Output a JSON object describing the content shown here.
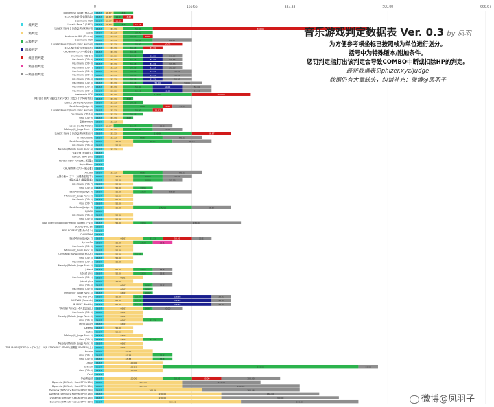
{
  "title": {
    "main": "音乐游戏判定数据表 Ver. 0.3",
    "author": "by 凤羽",
    "lines": [
      "为方便参考横坐标已按照帧为单位进行划分。",
      "括号中为特殊版本/附加条件。",
      "惩罚判定指打出该判定会导致COMBO中断或扣除HP的判定。"
    ],
    "link": "最新数据表见phizer.xyz/judge",
    "note": "数据仍有大量缺失，纠错补充：微博@凤羽子"
  },
  "watermark": "微博@凤羽子",
  "colors": {
    "l1": "#3dd6e4",
    "l2": "#f7d47a",
    "l3": "#2bb34d",
    "l4": "#1a1f8e",
    "p1": "#d11a1a",
    "p2": "#e83fa0",
    "p3": "#8e8e8e"
  },
  "chart_data": {
    "type": "bar",
    "stacked": true,
    "orientation": "horizontal",
    "x_ticks": [
      "0",
      "166.66",
      "333.33",
      "500.00",
      "666.67"
    ],
    "xlim": [
      0,
      666.67
    ],
    "grid": true,
    "legend_position": "left",
    "series": [
      {
        "key": "l1",
        "name": "一级判定"
      },
      {
        "key": "l2",
        "name": "二级判定"
      },
      {
        "key": "l3",
        "name": "三级判定"
      },
      {
        "key": "l4",
        "name": "四级判定"
      },
      {
        "key": "p1",
        "name": "一级惩罚判定"
      },
      {
        "key": "p2",
        "name": "二级惩罚判定"
      },
      {
        "key": "p3",
        "name": "一级惩罚判定"
      }
    ],
    "rows": [
      {
        "label": "DanceRush Judge (MOCA)",
        "l1": 16.67,
        "l2": 16.67,
        "l3": 33.33
      },
      {
        "label": "EZ2ON (鼓爵·顶/极限凤凰)",
        "l1": 16.67,
        "l2": 16.67,
        "l3": 16.67,
        "p1": 16.67
      },
      {
        "label": "beatmania IIDX",
        "l1": 16.67,
        "l2": 16.67,
        "p1": 16.67
      },
      {
        "label": "Lunatic Rave 2 (EASY)",
        "l1": 16.67,
        "l2": 16.67,
        "l3": 33.33,
        "p1": 16.67
      },
      {
        "label": "Lunatic Rave 2 (Judge Rank Hard)",
        "l1": 16.67,
        "l2": 33.33,
        "l3": 50.0,
        "p1": 366.66
      },
      {
        "label": "EZ2DJ",
        "l1": 16.67,
        "l2": 33.33,
        "l3": 50.0
      },
      {
        "label": "beatmania IIDX (Timing)",
        "l1": 16.67,
        "l2": 33.33,
        "l3": 33.33,
        "p1": 16.67
      },
      {
        "label": "beatmania IIDX",
        "l1": 16.67,
        "l2": 33.33,
        "l3": 50.0,
        "p3": 66.67
      },
      {
        "label": "Lunatic Rave 2 (Judge Rank Normal)",
        "l1": 16.67,
        "l2": 33.33,
        "l3": 50.0,
        "p1": 50.0
      },
      {
        "label": "EZ2ON (鼓爵·顶/极限凤凰)",
        "l1": 16.67,
        "l2": 33.33,
        "l3": 33.33,
        "p1": 33.33
      },
      {
        "label": "CHUNITHM (フリー/初心者)",
        "l1": 16.67,
        "l2": 33.33,
        "l3": 33.33
      },
      {
        "label": "Osu!mania (OD 10)",
        "l1": 16.67,
        "l2": 33.33,
        "l3": 33.33,
        "l4": 33.33,
        "p3": 33.33
      },
      {
        "label": "Osu!mania (OD 9)",
        "l1": 16.67,
        "l2": 33.33,
        "l3": 33.33,
        "l4": 33.33,
        "p3": 33.33
      },
      {
        "label": "Osu!mania (OD 8)",
        "l1": 16.67,
        "l2": 33.33,
        "l3": 33.33,
        "l4": 33.33,
        "p3": 33.33
      },
      {
        "label": "Osu!mania (OD 7)",
        "l1": 16.67,
        "l2": 33.33,
        "l3": 33.33,
        "l4": 33.33,
        "p3": 33.33
      },
      {
        "label": "Osu!mania (OD 6)",
        "l1": 16.67,
        "l2": 33.33,
        "l3": 33.33,
        "l4": 33.33,
        "p3": 50.0
      },
      {
        "label": "Osu!mania (OD 5)",
        "l1": 16.67,
        "l2": 33.33,
        "l3": 33.33,
        "l4": 33.33,
        "p3": 50.0
      },
      {
        "label": "Osu!mania (OD 4)",
        "l1": 16.67,
        "l2": 33.33,
        "l3": 33.33,
        "l4": 33.33,
        "p3": 50.0
      },
      {
        "label": "Osu!mania (OD 3)",
        "l1": 16.67,
        "l2": 33.33,
        "l3": 33.33,
        "l4": 50.0,
        "p3": 50.0
      },
      {
        "label": "Osu!mania (OD 2)",
        "l1": 16.67,
        "l2": 33.33,
        "l3": 50.0,
        "l4": 50.0,
        "p3": 50.0
      },
      {
        "label": "Osu!mania (OD 1)",
        "l1": 16.67,
        "l2": 33.33,
        "l3": 50.0,
        "l4": 50.0,
        "p3": 50.0
      },
      {
        "label": "beatmania IIDX",
        "l1": 16.67,
        "l2": 33.33,
        "l3": 116.66,
        "p1": 100.0
      },
      {
        "label": "REFLEC BEAT (限5为ボタン/タブ_対応ライブ MASTER)",
        "l1": 16.67,
        "l2": 33.33,
        "l3": 16.67
      },
      {
        "label": "Dance Dance Revolution",
        "l1": 16.67,
        "l2": 33.33,
        "l3": 33.33
      },
      {
        "label": "BeatMania (Judge 8)",
        "l1": 16.67,
        "l2": 33.33,
        "l3": 66.67,
        "p1": 16.67,
        "p3": 33.33
      },
      {
        "label": "Lunatic Rave 2 (Judge Rank Normal)",
        "l1": 16.67,
        "l2": 33.33,
        "l3": 50.0,
        "p1": 16.67
      },
      {
        "label": "Osu!mania (OD 10)",
        "l1": 16.67,
        "l2": 33.33,
        "l3": 33.33
      },
      {
        "label": "Osu! (OD 9)",
        "l1": 16.67,
        "l2": 33.33,
        "l3": 16.67
      },
      {
        "label": "音游WHHEN",
        "l1": 16.67,
        "l2": 33.33
      },
      {
        "label": "Jubeat (HARD MODE)",
        "l1": 16.67,
        "l2": 16.67,
        "l3": 66.67,
        "p3": 33.33
      },
      {
        "label": "Melody (P_Judge Rank 1)",
        "l1": 16.67,
        "l2": 33.33,
        "l3": 50.0,
        "p3": 50.0
      },
      {
        "label": "Lunatic Rave 2 (Judge Rank Easy)",
        "l1": 16.67,
        "l2": 33.33,
        "l3": 116.66,
        "p1": 66.67
      },
      {
        "label": "In The Groove",
        "l1": 16.67,
        "l2": 33.33,
        "l3": 66.67,
        "p3": 66.67
      },
      {
        "label": "BeatMania (Judge 4)",
        "l1": 16.67,
        "l2": 50.0,
        "l3": 66.67,
        "p3": 66.67
      },
      {
        "label": "Osu!mania (OD 6)",
        "l1": 16.67,
        "l2": 50.0
      },
      {
        "label": "Melody (Melody Judge Rank 6)",
        "l1": 16.67,
        "l2": 33.33
      },
      {
        "label": "节奏大师 (经典模式)",
        "l1": 16.67
      },
      {
        "label": "REFLEC BEAT plus",
        "l1": 16.67
      },
      {
        "label": "REFLEC BEAT (VOLZZA (红蓝))",
        "l1": 16.67
      },
      {
        "label": "Pop'n Music",
        "l1": 16.67
      },
      {
        "label": "CHUNITHM (フリー/初心者)",
        "l1": 16.67
      },
      {
        "label": "Arcaea",
        "l1": 16.67,
        "l2": 33.33,
        "l3": 66.67,
        "p3": 66.67
      },
      {
        "label": "太鼓の達人 (フリー) (難易度 松/竹)",
        "l1": 16.67,
        "l2": 50.0,
        "l3": 50.0,
        "p3": 50.0
      },
      {
        "label": "太鼓の達人 (難易度 梅)",
        "l1": 16.67,
        "l2": 50.0,
        "l3": 50.0,
        "p3": 33.33
      },
      {
        "label": "Osu!mania (OD 7)",
        "l1": 16.67,
        "l2": 50.0
      },
      {
        "label": "Osu! (OD 8)",
        "l1": 16.67,
        "l2": 50.0,
        "l3": 33.33
      },
      {
        "label": "BeatMania (Judge 5)",
        "l1": 16.67,
        "l2": 50.0,
        "l3": 33.33,
        "p3": 66.67
      },
      {
        "label": "Melody (P_Judge Rank 2)",
        "l1": 16.67,
        "l2": 50.0
      },
      {
        "label": "Osu!mania (OD 5)",
        "l1": 16.67,
        "l2": 50.0
      },
      {
        "label": "Osu! (OD 7)",
        "l1": 16.67,
        "l2": 50.0
      },
      {
        "label": "BeatMania (Judge 3)",
        "l1": 16.67,
        "l2": 50.0,
        "l3": 100.0,
        "p3": 66.67
      },
      {
        "label": "DJMAX",
        "l1": 16.67
      },
      {
        "label": "Osu!mania (OD 4)",
        "l1": 16.67,
        "l2": 50.0
      },
      {
        "label": "Osu! (OD 6)",
        "l1": 16.67,
        "l2": 50.0
      },
      {
        "label": "Love Live! School Idol Festival (Speed 5~10)",
        "l1": 16.67,
        "l2": 50.0,
        "l3": 33.33,
        "p3": 150.0
      },
      {
        "label": "SOUND VOLTEX",
        "l1": 16.67
      },
      {
        "label": "REFLEC BEAT (限5为ボタン)",
        "l1": 16.67
      },
      {
        "label": "CHUNITHM",
        "l1": 16.67
      },
      {
        "label": "BeatMania (Judge 2)",
        "l1": 16.67,
        "l2": 66.67,
        "l3": 33.33,
        "p1": 50.0,
        "p3": 33.33
      },
      {
        "label": "Lyrica Go",
        "l1": 16.67,
        "l2": 50.0,
        "l3": 33.33,
        "p2": 33.33
      },
      {
        "label": "Osu!mania (OD 3)",
        "l1": 16.67,
        "l2": 50.0
      },
      {
        "label": "Melody (P_Judge Rank 3)",
        "l1": 16.67,
        "l2": 50.0
      },
      {
        "label": "Overtaps (HARD/EDGE MODE)",
        "l1": 16.67,
        "l2": 50.0,
        "l3": 16.67
      },
      {
        "label": "Osu! (OD 5)",
        "l1": 16.67,
        "l2": 50.0
      },
      {
        "label": "Osu!mania (OD 2)",
        "l1": 16.67,
        "l2": 50.0
      },
      {
        "label": "Melody (Melody Judge Rank 5)",
        "l1": 16.67
      },
      {
        "label": "Jubeat",
        "l1": 16.67,
        "l2": 50.0,
        "l3": 33.33,
        "p3": 33.33
      },
      {
        "label": "Jubeat plus",
        "l1": 16.67,
        "l2": 50.0,
        "l3": 33.33,
        "p3": 33.33
      },
      {
        "label": "Osu!mania (OD 1)",
        "l1": 16.67,
        "l2": 66.67
      },
      {
        "label": "Jubeat plus",
        "l1": 16.67,
        "l2": 50.0
      },
      {
        "label": "Osu! (OD 4)",
        "l1": 16.67,
        "l2": 66.67,
        "l3": 16.67,
        "p3": 33.33
      },
      {
        "label": "Osu!mania (OD 0)",
        "l1": 16.67,
        "l2": 66.67,
        "l3": 16.67
      },
      {
        "label": "Melody (P_Judge Rank 4)",
        "l1": 16.67,
        "l2": 66.67,
        "l3": 16.67
      },
      {
        "label": "MUSYNX (PC)",
        "l1": 16.67,
        "l2": 50.0,
        "l3": 16.67,
        "l4": 116.66,
        "p3": 33.33
      },
      {
        "label": "MUSYNX (Console)",
        "l1": 16.67,
        "l2": 50.0,
        "l3": 16.67,
        "l4": 116.66,
        "p3": 33.33
      },
      {
        "label": "MUSYNX (Mobile)",
        "l1": 16.67,
        "l2": 50.0,
        "l3": 16.67,
        "l4": 116.66,
        "p3": 33.33
      },
      {
        "label": "Wonder Parade (不可思议乐队)",
        "l1": 16.67,
        "l2": 66.67,
        "l3": 16.67,
        "p3": 50.0
      },
      {
        "label": "Osu!mania (OD 0)",
        "l1": 16.67,
        "l2": 66.67
      },
      {
        "label": "Melody (Melody Judge Rank 4)",
        "l1": 16.67,
        "l2": 66.67
      },
      {
        "label": "Osu! (OD 3)",
        "l1": 16.67,
        "l2": 66.67,
        "l3": 33.33
      },
      {
        "label": "MUSE DASH",
        "l1": 16.67,
        "l2": 66.67
      },
      {
        "label": "Deemo",
        "l1": 16.67,
        "l2": 50.0
      },
      {
        "label": "Cytus",
        "l1": 16.67,
        "l2": 50.0
      },
      {
        "label": "Melody (P_Judge Rank 5)",
        "l1": 16.67,
        "l2": 66.67
      },
      {
        "label": "Osu! (OD 2)",
        "l1": 16.67,
        "l2": 66.67,
        "l3": 33.33
      },
      {
        "label": "Melody (Melody Judge Rank 3)",
        "l1": 16.67,
        "l2": 66.67
      },
      {
        "label": "THE IDOLM@STER シンデレラガールズ STARLIGHT STAGE (難易度 MASTER以上)",
        "l1": 16.67,
        "l2": 66.67
      },
      {
        "label": "Lanota",
        "l1": 16.67,
        "l2": 83.33
      },
      {
        "label": "Osu! (OD 1)",
        "l1": 16.67,
        "l2": 83.33,
        "l3": 33.33
      },
      {
        "label": "Osu! (OD 0)",
        "l1": 16.67,
        "l2": 83.33,
        "l3": 33.33
      },
      {
        "label": "Osbar",
        "l1": 16.67,
        "l2": 100.0
      },
      {
        "label": "Cytus II",
        "l1": 16.67,
        "l2": 100.0,
        "l3": 333.33,
        "p3": 33.33
      },
      {
        "label": "Osu! (OD 0)",
        "l1": 16.67,
        "l2": 100.0
      },
      {
        "label": "Osu!",
        "l1": 16.67
      },
      {
        "label": "OverRapid",
        "l1": 16.67,
        "l2": 100.0,
        "l3": 50.0,
        "p1": 50.0,
        "p3": 100.0
      },
      {
        "label": "Dynamix (Difficulty Hard BPM<180)",
        "l1": 16.67,
        "l2": 133.33,
        "p3": 133.33
      },
      {
        "label": "Dynamix (Difficulty Hard BPM>180)",
        "l1": 16.67,
        "l2": 133.33,
        "p3": 200.0
      },
      {
        "label": "Dynamix (Difficulty Normal BPM<180)",
        "l1": 16.67,
        "l2": 166.66,
        "p3": 166.66
      },
      {
        "label": "Dynamix (Difficulty Normal BPM>180)",
        "l1": 16.67,
        "l2": 200.0,
        "p3": 166.66
      },
      {
        "label": "Dynamix (Difficulty Casual BPM<180)",
        "l1": 16.67,
        "l2": 200.0,
        "p3": 200.0
      },
      {
        "label": "Dynamix (Difficulty Casual BPM>180)",
        "l1": 16.67,
        "l2": 233.33,
        "p3": 200.0
      }
    ]
  }
}
